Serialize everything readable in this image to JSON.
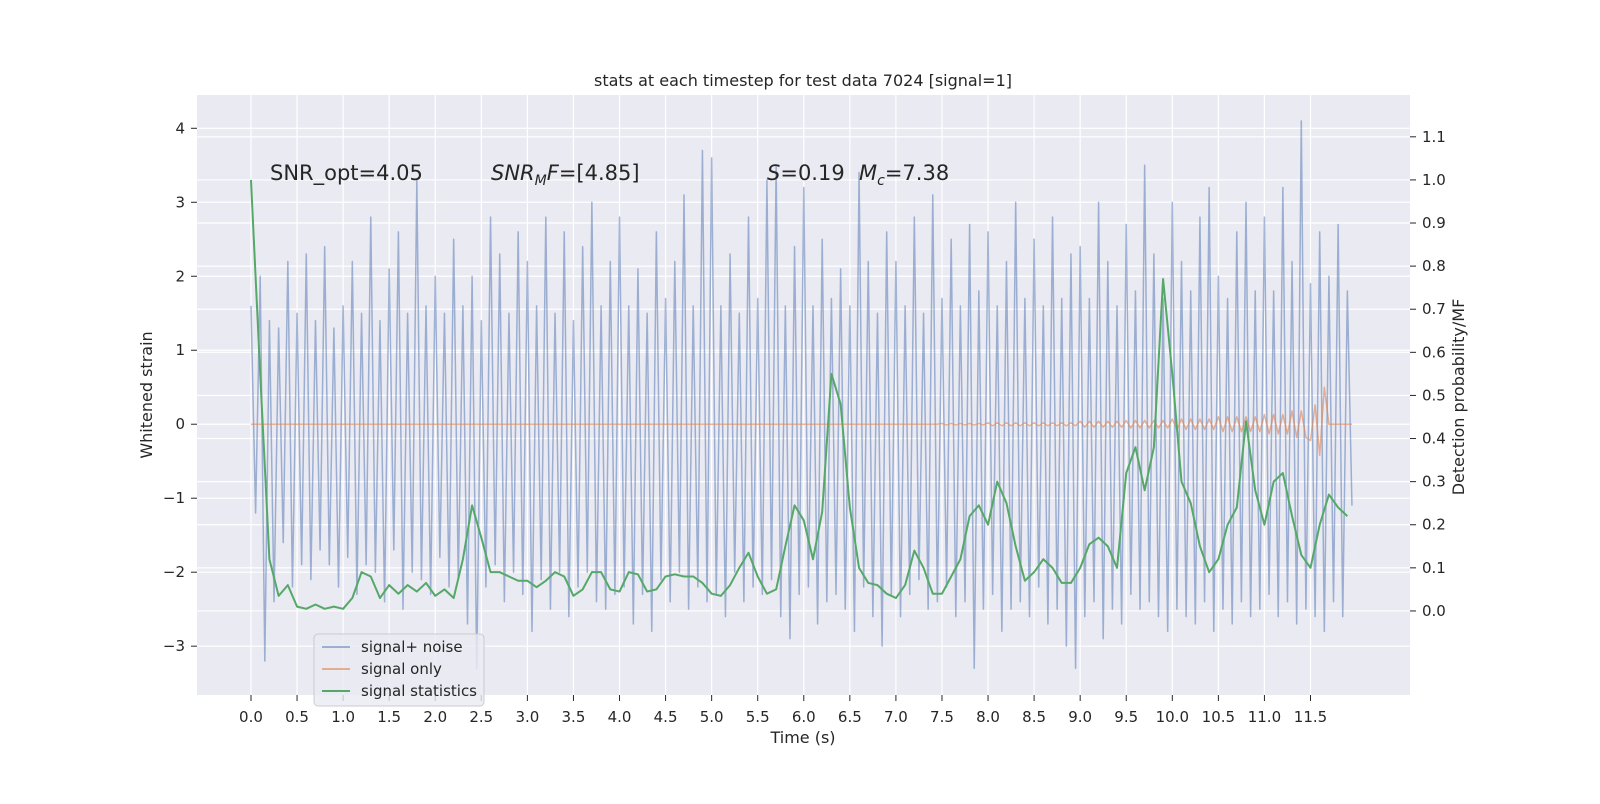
{
  "chart_data": {
    "type": "line",
    "title": "stats at each timestep for test data 7024 [signal=1]",
    "xlabel": "Time (s)",
    "ylabel": "Whitened strain",
    "y2label": "Detection probability/MF",
    "annotations": [
      [
        {
          "text": "SNR_opt=4.05"
        }
      ],
      [
        {
          "text": "SNR",
          "italic": true
        },
        {
          "text": "M",
          "italic": true,
          "sub": true
        },
        {
          "text": "F",
          "italic": true
        },
        {
          "text": "=[4.85]"
        }
      ],
      [
        {
          "text": "S",
          "italic": true
        },
        {
          "text": "=0.19"
        }
      ],
      [
        {
          "text": "M",
          "italic": true
        },
        {
          "text": "c",
          "italic": true,
          "sub": true
        },
        {
          "text": "=7.38"
        }
      ]
    ],
    "grid": true,
    "legend": "lower left",
    "xlim": [
      -0.586,
      12.58
    ],
    "ylim": [
      -3.66,
      4.45
    ],
    "y2lim": [
      -0.195,
      1.197
    ],
    "xticks": [
      {
        "value": 0,
        "label": "0.0"
      },
      0.5,
      {
        "value": 1,
        "label": "1.0"
      },
      1.5,
      {
        "value": 2,
        "label": "2.0"
      },
      2.5,
      {
        "value": 3,
        "label": "3.0"
      },
      3.5,
      {
        "value": 4,
        "label": "4.0"
      },
      4.5,
      {
        "value": 5,
        "label": "5.0"
      },
      5.5,
      {
        "value": 6,
        "label": "6.0"
      },
      6.5,
      {
        "value": 7,
        "label": "7.0"
      },
      7.5,
      {
        "value": 8,
        "label": "8.0"
      },
      8.5,
      {
        "value": 9,
        "label": "9.0"
      },
      9.5,
      {
        "value": 10,
        "label": "10.0"
      },
      10.5,
      {
        "value": 11,
        "label": "11.0"
      },
      11.5
    ],
    "yticks": [
      {
        "value": -3,
        "label": "−3"
      },
      {
        "value": -2,
        "label": "−2"
      },
      {
        "value": -1,
        "label": "−1"
      },
      0,
      1,
      2,
      3,
      4
    ],
    "y2ticks": [
      {
        "value": 0,
        "label": "0.0"
      },
      0.1,
      0.2,
      0.3,
      0.4,
      0.5,
      0.6,
      0.7,
      0.8,
      0.9,
      {
        "value": 1,
        "label": "1.0"
      },
      1.1
    ],
    "x": [
      0,
      0.05,
      0.1,
      0.15,
      0.2,
      0.25,
      0.3,
      0.35,
      0.4,
      0.45,
      0.5,
      0.55,
      0.6,
      0.65,
      0.7,
      0.75,
      0.8,
      0.85,
      0.9,
      0.95,
      1,
      1.05,
      1.1,
      1.15,
      1.2,
      1.25,
      1.3,
      1.35,
      1.4,
      1.45,
      1.5,
      1.55,
      1.6,
      1.65,
      1.7,
      1.75,
      1.8,
      1.85,
      1.9,
      1.95,
      2,
      2.05,
      2.1,
      2.15,
      2.2,
      2.25,
      2.3,
      2.35,
      2.4,
      2.45,
      2.5,
      2.55,
      2.6,
      2.65,
      2.7,
      2.75,
      2.8,
      2.85,
      2.9,
      2.95,
      3,
      3.05,
      3.1,
      3.15,
      3.2,
      3.25,
      3.3,
      3.35,
      3.4,
      3.45,
      3.5,
      3.55,
      3.6,
      3.65,
      3.7,
      3.75,
      3.8,
      3.85,
      3.9,
      3.95,
      4,
      4.05,
      4.1,
      4.15,
      4.2,
      4.25,
      4.3,
      4.35,
      4.4,
      4.45,
      4.5,
      4.55,
      4.6,
      4.65,
      4.7,
      4.75,
      4.8,
      4.85,
      4.9,
      4.95,
      5,
      5.05,
      5.1,
      5.15,
      5.2,
      5.25,
      5.3,
      5.35,
      5.4,
      5.45,
      5.5,
      5.55,
      5.6,
      5.65,
      5.7,
      5.75,
      5.8,
      5.85,
      5.9,
      5.95,
      6,
      6.05,
      6.1,
      6.15,
      6.2,
      6.25,
      6.3,
      6.35,
      6.4,
      6.45,
      6.5,
      6.55,
      6.6,
      6.65,
      6.7,
      6.75,
      6.8,
      6.85,
      6.9,
      6.95,
      7,
      7.05,
      7.1,
      7.15,
      7.2,
      7.25,
      7.3,
      7.35,
      7.4,
      7.45,
      7.5,
      7.55,
      7.6,
      7.65,
      7.7,
      7.75,
      7.8,
      7.85,
      7.9,
      7.95,
      8,
      8.05,
      8.1,
      8.15,
      8.2,
      8.25,
      8.3,
      8.35,
      8.4,
      8.45,
      8.5,
      8.55,
      8.6,
      8.65,
      8.7,
      8.75,
      8.8,
      8.85,
      8.9,
      8.95,
      9,
      9.05,
      9.1,
      9.15,
      9.2,
      9.25,
      9.3,
      9.35,
      9.4,
      9.45,
      9.5,
      9.55,
      9.6,
      9.65,
      9.7,
      9.75,
      9.8,
      9.85,
      9.9,
      9.95,
      10,
      10.05,
      10.1,
      10.15,
      10.2,
      10.25,
      10.3,
      10.35,
      10.4,
      10.45,
      10.5,
      10.55,
      10.6,
      10.65,
      10.7,
      10.75,
      10.8,
      10.85,
      10.9,
      10.95,
      11,
      11.05,
      11.1,
      11.15,
      11.2,
      11.25,
      11.3,
      11.35,
      11.4,
      11.45,
      11.5,
      11.55,
      11.6,
      11.65,
      11.7,
      11.75,
      11.8,
      11.85,
      11.9,
      11.95
    ],
    "series": [
      {
        "name": "signal+ noise",
        "color": "#4c72b0",
        "opacity": 0.5,
        "values": [
          1.6,
          -1.2,
          2.0,
          -3.2,
          1.4,
          -2.4,
          1.3,
          -1.6,
          2.2,
          -2.2,
          1.5,
          -1.9,
          2.3,
          -2.1,
          1.4,
          -1.7,
          2.4,
          -1.9,
          1.3,
          -2.2,
          1.6,
          -1.8,
          2.2,
          -2.3,
          1.5,
          -1.9,
          2.8,
          -2.0,
          1.4,
          -2.4,
          2.1,
          -1.7,
          2.6,
          -2.5,
          1.5,
          -2.0,
          3.3,
          -2.1,
          1.6,
          -2.3,
          2.0,
          -1.8,
          1.5,
          -2.2,
          2.5,
          -2.1,
          1.6,
          -2.7,
          2.0,
          -3.3,
          1.4,
          -2.2,
          2.8,
          -1.9,
          2.3,
          -2.4,
          1.5,
          -2.0,
          2.6,
          -2.3,
          2.2,
          -2.8,
          1.6,
          -2.1,
          2.8,
          -2.5,
          1.5,
          -2.0,
          2.6,
          -2.6,
          1.4,
          -2.2,
          2.4,
          -2.0,
          3.0,
          -2.4,
          1.6,
          -2.5,
          2.2,
          -2.3,
          2.8,
          -2.2,
          1.6,
          -2.7,
          2.1,
          -2.3,
          1.5,
          -2.8,
          2.6,
          -2.1,
          1.7,
          -2.4,
          2.2,
          -2.0,
          3.1,
          -2.5,
          1.6,
          -2.2,
          3.7,
          -2.4,
          3.6,
          -2.3,
          1.6,
          -2.6,
          2.3,
          -2.0,
          1.5,
          -2.4,
          2.8,
          -2.2,
          1.7,
          -2.3,
          3.3,
          -2.1,
          3.5,
          -2.6,
          1.6,
          -2.9,
          2.4,
          -2.3,
          3.2,
          -2.2,
          1.6,
          -2.7,
          2.5,
          -2.4,
          1.7,
          -2.3,
          2.1,
          -2.5,
          1.6,
          -2.8,
          3.4,
          -2.2,
          2.2,
          -2.6,
          1.5,
          -3.0,
          2.6,
          -2.3,
          2.2,
          -2.6,
          1.6,
          -2.3,
          2.8,
          -2.1,
          1.5,
          -2.5,
          3.1,
          -2.4,
          1.7,
          -2.2,
          2.5,
          -2.6,
          1.6,
          -2.4,
          2.7,
          -3.3,
          1.8,
          -2.5,
          2.6,
          -2.3,
          1.6,
          -2.8,
          2.2,
          -2.5,
          3.0,
          -2.4,
          1.7,
          -2.6,
          2.5,
          -2.2,
          1.6,
          -2.7,
          2.8,
          -2.5,
          1.7,
          -3.0,
          2.3,
          -3.3,
          2.4,
          -2.6,
          1.7,
          -2.4,
          3.0,
          -2.9,
          2.2,
          -2.5,
          1.6,
          -2.7,
          2.7,
          -2.3,
          1.8,
          -2.5,
          3.5,
          -2.4,
          2.3,
          -2.6,
          1.7,
          -2.8,
          3.0,
          -2.5,
          2.2,
          -2.6,
          1.8,
          -2.7,
          2.8,
          -2.4,
          3.2,
          -2.8,
          2.0,
          -2.5,
          1.7,
          -2.7,
          2.6,
          -2.4,
          3.0,
          -2.6,
          1.8,
          -2.5,
          2.8,
          -2.3,
          1.8,
          -2.6,
          3.2,
          -2.4,
          2.2,
          -2.7,
          4.1,
          -2.5,
          1.9,
          -2.6,
          2.6,
          -2.8,
          2.0,
          -2.4,
          2.7,
          -2.6,
          1.8,
          -1.1
        ]
      },
      {
        "name": "signal only",
        "color": "#dd8452",
        "opacity": 0.6,
        "values": [
          0,
          0,
          0,
          0,
          0,
          0,
          0,
          0,
          0,
          0,
          0,
          0,
          0,
          0,
          0,
          0,
          0,
          0,
          0,
          0,
          0,
          0,
          0,
          0,
          0,
          0,
          0,
          0,
          0,
          0,
          0,
          0,
          0,
          0,
          0,
          0,
          0,
          0,
          0,
          0,
          0,
          0,
          0,
          0,
          0,
          0,
          0,
          0,
          0,
          0,
          0,
          0,
          0,
          0,
          0,
          0,
          0,
          0,
          0,
          0,
          0,
          0,
          0,
          0,
          0,
          0,
          0,
          0,
          0,
          0,
          0,
          0,
          0,
          0,
          0,
          0,
          0,
          0,
          0,
          0,
          0,
          0,
          0,
          0,
          0,
          0,
          0,
          0,
          0,
          0,
          0,
          0,
          0,
          0,
          0,
          0,
          0,
          0,
          0,
          0,
          0,
          0,
          0,
          0,
          0,
          0,
          0,
          0,
          0,
          0,
          0,
          0,
          0,
          0,
          0,
          0,
          0,
          0,
          0,
          0,
          0,
          0,
          0,
          0,
          0,
          0,
          0,
          0,
          0,
          0,
          0,
          0,
          0,
          0,
          0,
          0,
          0,
          0,
          0,
          0,
          0,
          0,
          0,
          0,
          0,
          0,
          0,
          0,
          0,
          0,
          0.01,
          -0.01,
          0.01,
          -0.01,
          0.01,
          -0.01,
          0.01,
          -0.01,
          0.01,
          -0.01,
          0.02,
          -0.02,
          0.02,
          -0.02,
          0.02,
          -0.02,
          0.02,
          -0.02,
          0.02,
          -0.02,
          0.02,
          -0.02,
          0.02,
          -0.02,
          0.02,
          -0.02,
          0.02,
          -0.02,
          0.02,
          -0.02,
          0.04,
          -0.04,
          0.04,
          -0.04,
          0.04,
          -0.04,
          0.04,
          -0.04,
          0.04,
          -0.04,
          0.05,
          -0.05,
          0.05,
          -0.05,
          0.05,
          -0.05,
          0.05,
          -0.05,
          0.05,
          -0.05,
          0.07,
          -0.07,
          0.07,
          -0.07,
          0.07,
          -0.07,
          0.07,
          -0.07,
          0.07,
          -0.07,
          0.1,
          -0.1,
          0.1,
          -0.1,
          0.1,
          -0.1,
          0.1,
          -0.1,
          0.1,
          -0.1,
          0.13,
          -0.13,
          0.13,
          -0.13,
          0.13,
          -0.13,
          0.18,
          -0.18,
          0.18,
          -0.18,
          -0.22,
          0.26,
          -0.42,
          0.5,
          0,
          0,
          0,
          0,
          0,
          0
        ]
      },
      {
        "name": "signal statistics",
        "color": "#55a868",
        "opacity": 1,
        "axis": "y2",
        "x": [
          0,
          0.1,
          0.2,
          0.3,
          0.4,
          0.5,
          0.6,
          0.7,
          0.8,
          0.9,
          1,
          1.1,
          1.2,
          1.3,
          1.4,
          1.5,
          1.6,
          1.7,
          1.8,
          1.9,
          2,
          2.1,
          2.2,
          2.3,
          2.4,
          2.5,
          2.6,
          2.7,
          2.8,
          2.9,
          3,
          3.1,
          3.2,
          3.3,
          3.4,
          3.5,
          3.6,
          3.7,
          3.8,
          3.9,
          4,
          4.1,
          4.2,
          4.3,
          4.4,
          4.5,
          4.6,
          4.7,
          4.8,
          4.9,
          5,
          5.1,
          5.2,
          5.3,
          5.4,
          5.5,
          5.6,
          5.7,
          5.8,
          5.9,
          6,
          6.1,
          6.2,
          6.3,
          6.4,
          6.5,
          6.6,
          6.7,
          6.8,
          6.9,
          7,
          7.1,
          7.2,
          7.3,
          7.4,
          7.5,
          7.6,
          7.7,
          7.8,
          7.9,
          8,
          8.1,
          8.2,
          8.3,
          8.4,
          8.5,
          8.6,
          8.7,
          8.8,
          8.9,
          9,
          9.1,
          9.2,
          9.3,
          9.4,
          9.5,
          9.6,
          9.7,
          9.8,
          9.9,
          10,
          10.1,
          10.2,
          10.3,
          10.4,
          10.5,
          10.6,
          10.7,
          10.8,
          10.9,
          11,
          11.1,
          11.2,
          11.3,
          11.4,
          11.5,
          11.6,
          11.7,
          11.8,
          11.9
        ],
        "values": [
          1.0,
          0.55,
          0.12,
          0.035,
          0.06,
          0.01,
          0.005,
          0.015,
          0.005,
          0.01,
          0.005,
          0.03,
          0.09,
          0.08,
          0.03,
          0.06,
          0.04,
          0.06,
          0.045,
          0.065,
          0.035,
          0.05,
          0.03,
          0.12,
          0.245,
          0.17,
          0.09,
          0.09,
          0.08,
          0.07,
          0.07,
          0.055,
          0.07,
          0.09,
          0.08,
          0.035,
          0.05,
          0.09,
          0.09,
          0.05,
          0.045,
          0.09,
          0.085,
          0.045,
          0.05,
          0.08,
          0.085,
          0.08,
          0.08,
          0.065,
          0.04,
          0.035,
          0.06,
          0.1,
          0.135,
          0.08,
          0.04,
          0.05,
          0.15,
          0.245,
          0.21,
          0.12,
          0.23,
          0.55,
          0.48,
          0.24,
          0.1,
          0.065,
          0.06,
          0.04,
          0.03,
          0.06,
          0.14,
          0.1,
          0.04,
          0.04,
          0.08,
          0.12,
          0.22,
          0.245,
          0.2,
          0.3,
          0.25,
          0.15,
          0.07,
          0.09,
          0.12,
          0.1,
          0.065,
          0.065,
          0.1,
          0.155,
          0.17,
          0.15,
          0.1,
          0.32,
          0.38,
          0.28,
          0.38,
          0.77,
          0.55,
          0.3,
          0.25,
          0.15,
          0.09,
          0.12,
          0.2,
          0.24,
          0.44,
          0.28,
          0.2,
          0.3,
          0.32,
          0.22,
          0.13,
          0.1,
          0.2,
          0.27,
          0.24,
          0.22
        ]
      }
    ]
  }
}
